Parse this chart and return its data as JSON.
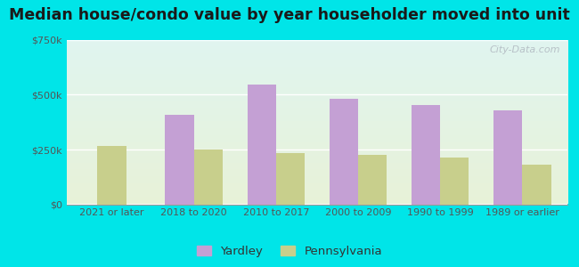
{
  "title": "Median house/condo value by year householder moved into unit",
  "categories": [
    "2021 or later",
    "2018 to 2020",
    "2010 to 2017",
    "2000 to 2009",
    "1990 to 1999",
    "1989 or earlier"
  ],
  "yardley_values": [
    0,
    410000,
    545000,
    480000,
    455000,
    430000
  ],
  "pennsylvania_values": [
    265000,
    250000,
    235000,
    225000,
    215000,
    180000
  ],
  "yardley_color": "#c4a0d4",
  "pennsylvania_color": "#c8cf8c",
  "ylim": [
    0,
    750000
  ],
  "yticks": [
    0,
    250000,
    500000,
    750000
  ],
  "ytick_labels": [
    "$0",
    "$250k",
    "$500k",
    "$750k"
  ],
  "bg_color_top": "#e0f5f0",
  "bg_color_bottom": "#e8f2d8",
  "outer_background": "#00e5e8",
  "bar_width": 0.35,
  "watermark": "City-Data.com",
  "legend_yardley": "Yardley",
  "legend_pennsylvania": "Pennsylvania",
  "title_fontsize": 12.5,
  "tick_fontsize": 8,
  "legend_fontsize": 9.5
}
